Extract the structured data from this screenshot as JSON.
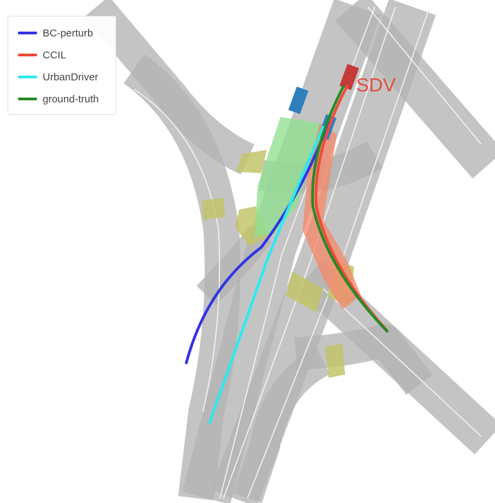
{
  "legend": {
    "items": [
      {
        "label": "BC-perturb",
        "color": "#3333e6"
      },
      {
        "label": "CCIL",
        "color": "#f04a3a"
      },
      {
        "label": "UrbanDriver",
        "color": "#2ee8f0"
      },
      {
        "label": "ground-truth",
        "color": "#278a27"
      }
    ]
  },
  "ego": {
    "label": "SDV",
    "color": "#e05040"
  },
  "colors": {
    "road": "#c4c4c4",
    "road_overlap": "#a9a9a9",
    "lane_line": "#f2f2f2",
    "crosswalk": "#c2c46a",
    "other_vehicle": "#2f7fbd",
    "ego_vehicle": "#c63a3a",
    "green_corridor": "#8fe08f",
    "red_corridor": "#f38b6b"
  }
}
